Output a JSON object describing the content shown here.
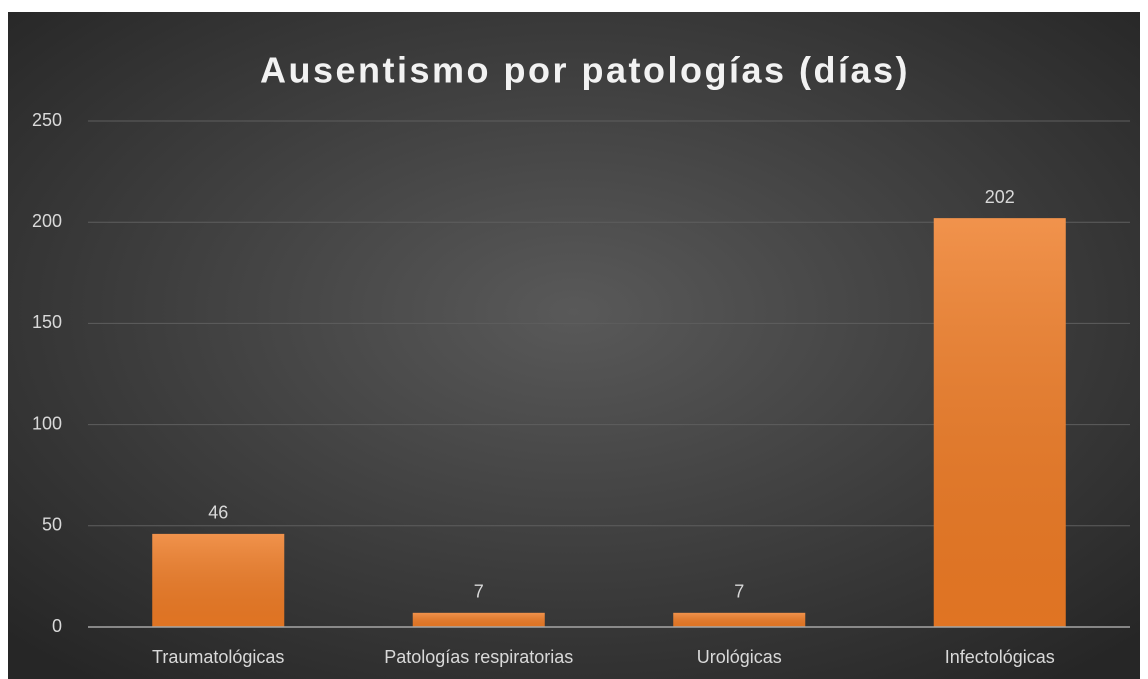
{
  "chart_data": {
    "type": "bar",
    "title": "Ausentismo por patologías (días)",
    "categories": [
      "Traumatológicas",
      "Patologías respiratorias",
      "Urológicas",
      "Infectológicas"
    ],
    "values": [
      46,
      7,
      7,
      202
    ],
    "color": "#ee7b25",
    "ylim": [
      0,
      250
    ],
    "yticks": [
      0,
      50,
      100,
      150,
      200,
      250
    ],
    "grid": true
  }
}
